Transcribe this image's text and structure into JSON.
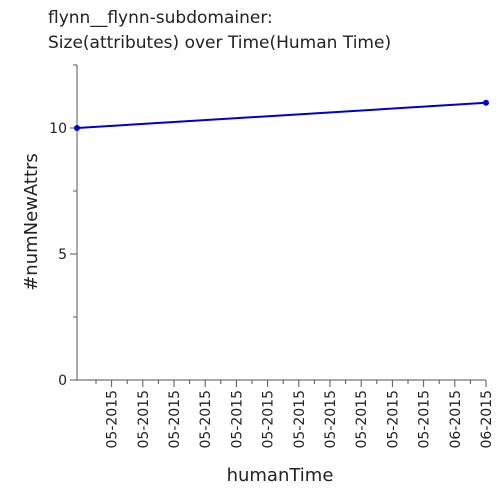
{
  "chart_data": {
    "type": "line",
    "title_lines": [
      "flynn__flynn-subdomainer:",
      "Size(attributes) over Time(Human Time)"
    ],
    "xlabel": "humanTime",
    "ylabel": "#numNewAttrs",
    "ylim": [
      0,
      12.5
    ],
    "y_ticks": [
      0,
      5,
      10
    ],
    "y_minor_ticks": [
      2.5,
      7.5,
      12.5
    ],
    "x_tick_labels": [
      "05-2015",
      "05-2015",
      "05-2015",
      "05-2015",
      "05-2015",
      "05-2015",
      "05-2015",
      "05-2015",
      "05-2015",
      "05-2015",
      "05-2015",
      "06-2015",
      "06-2015"
    ],
    "x_minor_ticks": 26,
    "series": [
      {
        "points": [
          [
            0,
            10
          ],
          [
            1,
            11
          ]
        ],
        "color": "#0000cc"
      }
    ],
    "grid": false
  }
}
